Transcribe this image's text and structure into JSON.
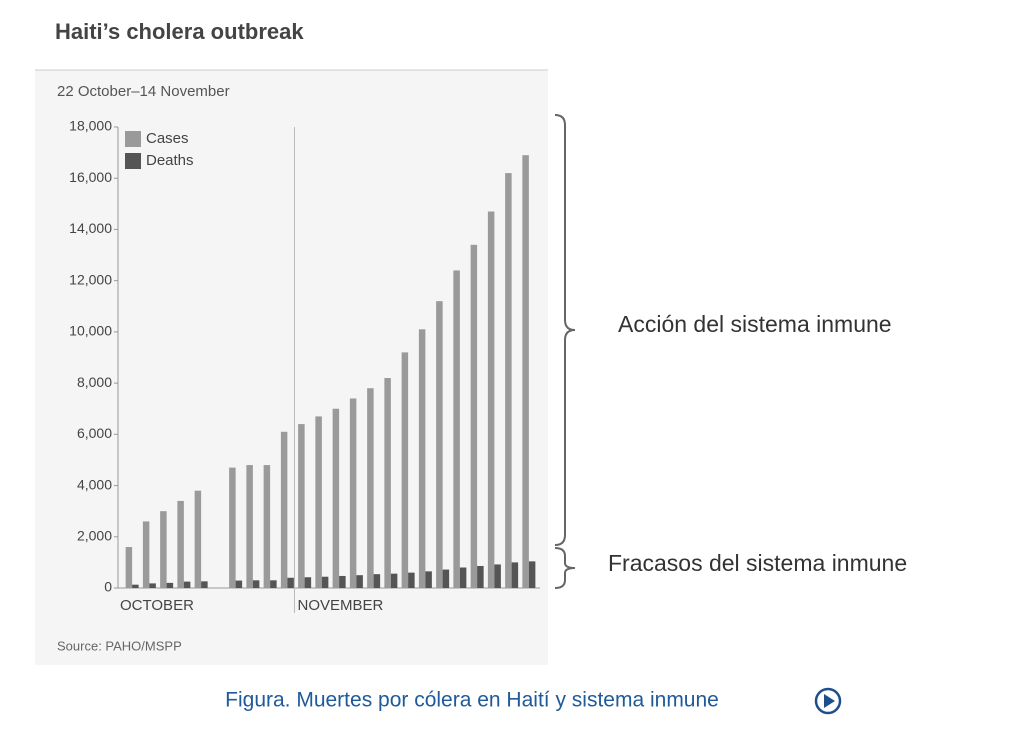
{
  "chart_data": {
    "type": "bar",
    "title": "Haiti’s cholera outbreak",
    "subtitle": "22 October–14 November",
    "source": "Source: PAHO/MSPP",
    "categories": [
      null,
      null,
      null,
      null,
      null,
      null,
      null,
      null,
      null,
      null,
      null,
      null,
      null,
      null,
      null,
      null,
      null,
      null,
      null,
      null,
      null,
      null,
      null,
      null
    ],
    "x_group_labels": [
      {
        "label": "OCTOBER",
        "start": 0
      },
      {
        "label": "NOVEMBER",
        "start": 10
      }
    ],
    "series": [
      {
        "name": "Cases",
        "color": "#9a9a9a",
        "values": [
          1600,
          2600,
          3000,
          3400,
          3800,
          null,
          4700,
          4800,
          4800,
          6100,
          6400,
          6700,
          7000,
          7400,
          7800,
          8200,
          9200,
          10100,
          11200,
          12400,
          13400,
          14700,
          16200,
          16900
        ]
      },
      {
        "name": "Deaths",
        "color": "#555555",
        "values": [
          130,
          180,
          200,
          250,
          260,
          null,
          290,
          300,
          300,
          400,
          420,
          440,
          470,
          500,
          540,
          560,
          600,
          650,
          720,
          800,
          860,
          920,
          1000,
          1040
        ]
      }
    ],
    "ylim": [
      0,
      18000
    ],
    "yticks": [
      0,
      {
        "value": 2000,
        "label": "2,000"
      },
      {
        "value": 4000,
        "label": "4,000"
      },
      {
        "value": 6000,
        "label": "6,000"
      },
      {
        "value": 8000,
        "label": "8,000"
      },
      {
        "value": 10000,
        "label": "10,000"
      },
      {
        "value": 12000,
        "label": "12,000"
      },
      {
        "value": 14000,
        "label": "14,000"
      },
      {
        "value": 16000,
        "label": "16,000"
      },
      {
        "value": 18000,
        "label": "18,000"
      }
    ],
    "legend": "top-left",
    "annotations": [
      "Acción del sistema inmune",
      "Fracasos del sistema inmune"
    ],
    "caption": "Figura. Muertes por cólera en Haití y sistema inmune"
  }
}
